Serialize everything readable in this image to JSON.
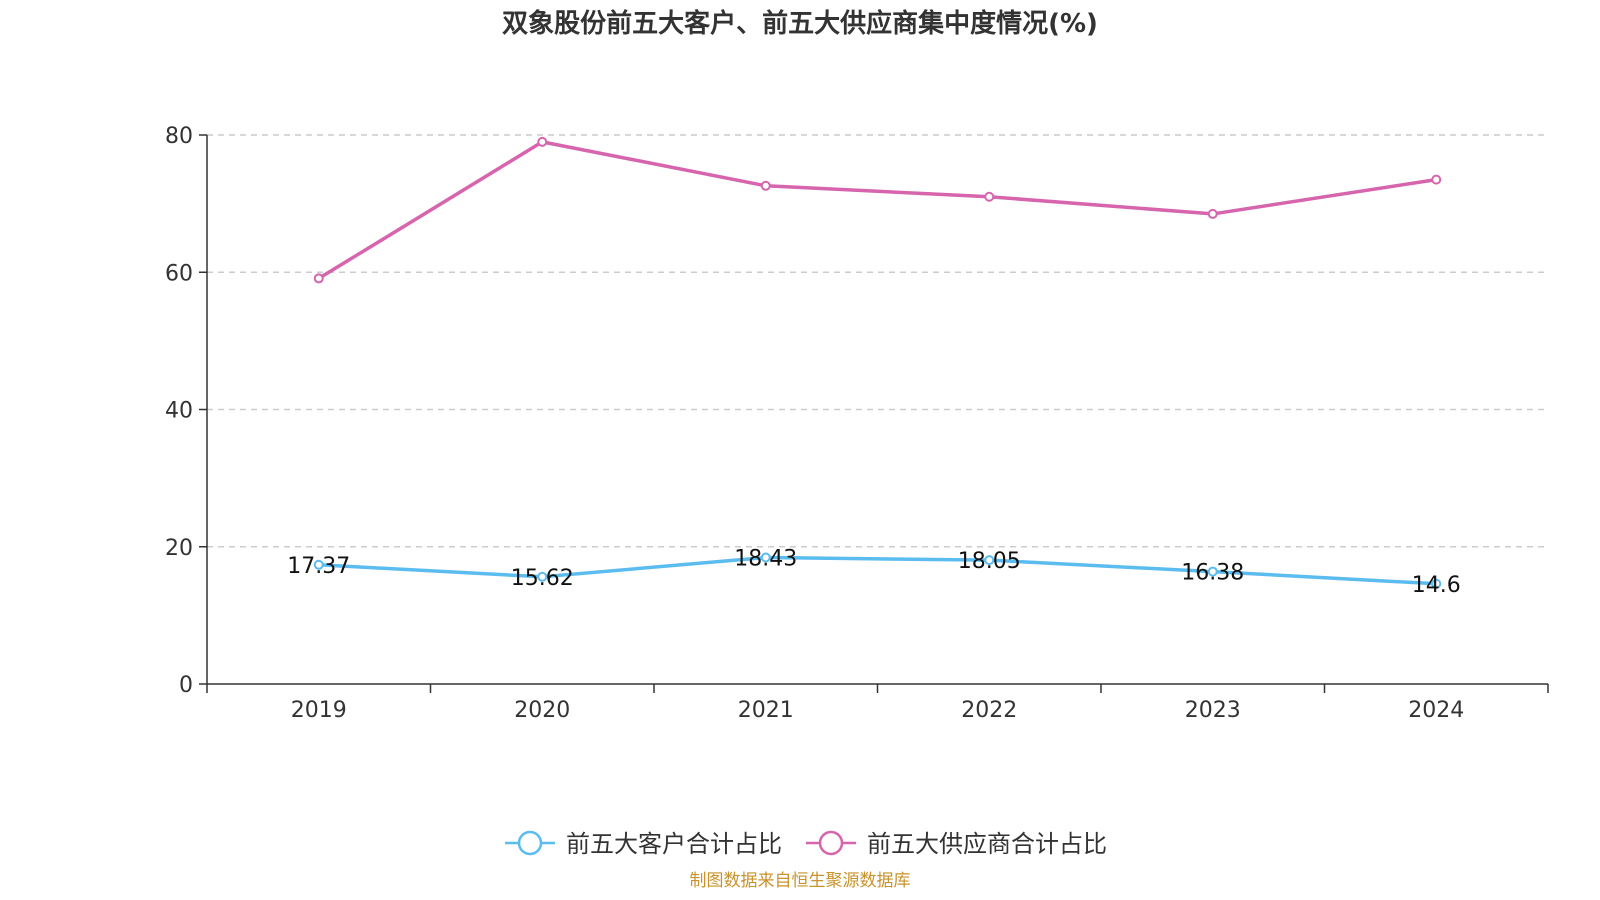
{
  "chart_data": {
    "type": "line",
    "title": "双象股份前五大客户、前五大供应商集中度情况(%)",
    "categories": [
      "2019",
      "2020",
      "2021",
      "2022",
      "2023",
      "2024"
    ],
    "ylim": [
      0,
      80
    ],
    "yticks": [
      "0",
      "20",
      "40",
      "60",
      "80"
    ],
    "grid": true,
    "legend_position": "bottom",
    "series": [
      {
        "name": "前五大客户合计占比",
        "color": "#5bbcf0",
        "values": [
          17.37,
          15.62,
          18.43,
          18.05,
          16.38,
          14.6
        ],
        "labels": [
          "17.37",
          "15.62",
          "18.43",
          "18.05",
          "16.38",
          "14.6"
        ],
        "show_labels": true
      },
      {
        "name": "前五大供应商合计占比",
        "color": "#d665ad",
        "values": [
          59.1,
          79.0,
          72.6,
          71.0,
          68.5,
          73.5
        ],
        "show_labels": false
      }
    ],
    "source": "制图数据来自恒生聚源数据库",
    "source_color": "#c8932a",
    "axis_color": "#333333",
    "grid_color": "#cccccc"
  }
}
